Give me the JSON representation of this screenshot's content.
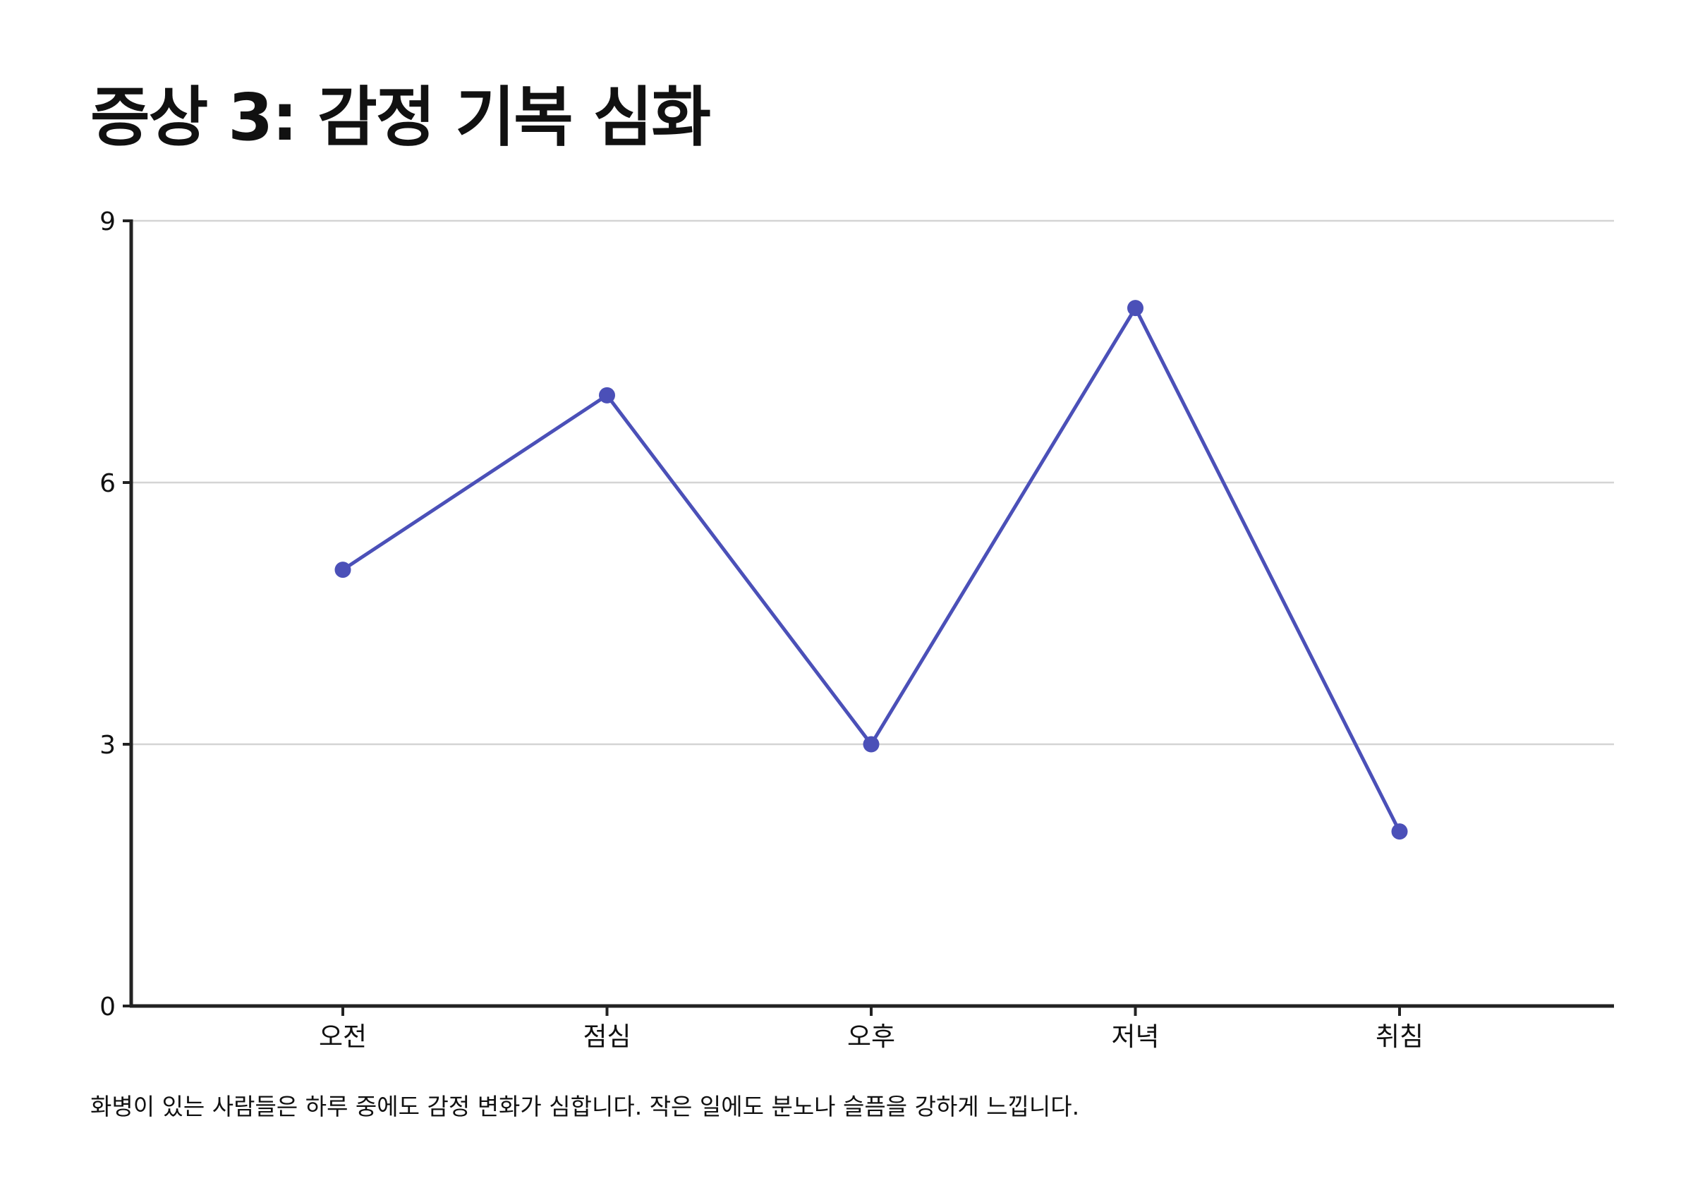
{
  "title": "증상 3: 감정 기복 심화",
  "caption": "화병이 있는 사람들은 하루 중에도 감정 변화가 심합니다. 작은 일에도 분노나 슬픔을 강하게 느낍니다.",
  "colors": {
    "line": "#4b50b8",
    "grid": "#d4d4d4",
    "axis": "#222222"
  },
  "chart_data": {
    "type": "line",
    "categories": [
      "오전",
      "점심",
      "오후",
      "저녁",
      "취침"
    ],
    "series": [
      {
        "values": [
          5,
          7,
          3,
          8,
          2
        ]
      }
    ],
    "xlabel": "",
    "ylabel": "",
    "ylim": [
      0,
      9
    ],
    "yticks": [
      0,
      3,
      6,
      9
    ],
    "grid": true,
    "legend": "none"
  }
}
